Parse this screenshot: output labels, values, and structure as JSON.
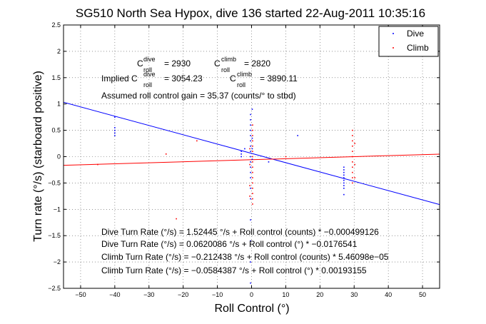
{
  "chart_data": {
    "type": "scatter",
    "title": "SG510 North Sea Hypox, dive 136 started 22-Aug-2011 10:35:16",
    "xlabel": "Roll Control (°)",
    "ylabel": "Turn rate (°/s) (starboard positive)",
    "xlim": [
      -55,
      55
    ],
    "ylim": [
      -2.5,
      2.5
    ],
    "xticks": [
      -50,
      -40,
      -30,
      -20,
      -10,
      0,
      10,
      20,
      30,
      40,
      50
    ],
    "yticks": [
      -2.5,
      -2,
      -1.5,
      -1,
      -0.5,
      0,
      0.5,
      1,
      1.5,
      2,
      2.5
    ],
    "xtick_labels": [
      "−50",
      "−40",
      "−30",
      "−20",
      "−10",
      "0",
      "10",
      "20",
      "30",
      "40",
      "50"
    ],
    "ytick_labels": [
      "−2.5",
      "−2",
      "−1.5",
      "−1",
      "−0.5",
      "0",
      "0.5",
      "1",
      "1.5",
      "2",
      "2.5"
    ],
    "grid": true,
    "legend": {
      "placement": "top-right",
      "entries": [
        {
          "label": "Dive",
          "color": "#0000ff"
        },
        {
          "label": "Climb",
          "color": "#ff0000"
        }
      ]
    },
    "series": [
      {
        "name": "Dive",
        "color": "#0000ff",
        "points": [
          [
            -40,
            0.55
          ],
          [
            -40,
            0.5
          ],
          [
            -40,
            0.45
          ],
          [
            -40,
            0.4
          ],
          [
            -40,
            0.75
          ],
          [
            -0.3,
            0.8
          ],
          [
            -0.3,
            0.7
          ],
          [
            -0.3,
            0.6
          ],
          [
            -0.3,
            0.5
          ],
          [
            -0.3,
            0.4
          ],
          [
            -0.3,
            0.3
          ],
          [
            -0.3,
            0.2
          ],
          [
            -0.3,
            0.1
          ],
          [
            -0.3,
            0.0
          ],
          [
            -0.3,
            -0.1
          ],
          [
            -0.3,
            -0.2
          ],
          [
            -0.3,
            -0.3
          ],
          [
            -0.3,
            -0.4
          ],
          [
            -0.3,
            -0.6
          ],
          [
            -0.3,
            -0.8
          ],
          [
            -0.3,
            -1.2
          ],
          [
            -0.3,
            -1.6
          ],
          [
            -0.3,
            -2.0
          ],
          [
            -0.3,
            -2.4
          ],
          [
            0.2,
            0.9
          ],
          [
            0.2,
            0.35
          ],
          [
            0.2,
            0.15
          ],
          [
            0.2,
            -0.05
          ],
          [
            -3,
            0.1
          ],
          [
            -3,
            0.05
          ],
          [
            -3,
            0.0
          ],
          [
            -2,
            0.15
          ],
          [
            5,
            -0.1
          ],
          [
            13.5,
            0.4
          ],
          [
            27,
            -0.2
          ],
          [
            27,
            -0.25
          ],
          [
            27,
            -0.3
          ],
          [
            27,
            -0.35
          ],
          [
            27,
            -0.4
          ],
          [
            27,
            -0.45
          ],
          [
            27,
            -0.5
          ],
          [
            27,
            -0.55
          ],
          [
            27,
            -0.6
          ],
          [
            27,
            -0.72
          ]
        ]
      },
      {
        "name": "Climb",
        "color": "#ff0000",
        "points": [
          [
            0.3,
            0.6
          ],
          [
            0.3,
            0.5
          ],
          [
            0.3,
            0.4
          ],
          [
            0.3,
            0.3
          ],
          [
            0.3,
            0.2
          ],
          [
            0.3,
            0.1
          ],
          [
            0.3,
            0.0
          ],
          [
            0.3,
            -0.1
          ],
          [
            0.3,
            -0.2
          ],
          [
            0.3,
            -0.3
          ],
          [
            0.3,
            -0.4
          ],
          [
            0.3,
            -0.5
          ],
          [
            0.3,
            -0.6
          ],
          [
            0.3,
            -0.7
          ],
          [
            0.3,
            -0.8
          ],
          [
            0.3,
            -0.9
          ],
          [
            -0.5,
            0.15
          ],
          [
            -0.5,
            -0.15
          ],
          [
            -0.5,
            -0.55
          ],
          [
            -0.5,
            -0.75
          ],
          [
            29.5,
            0.5
          ],
          [
            29.5,
            0.4
          ],
          [
            29.5,
            0.3
          ],
          [
            29.5,
            0.2
          ],
          [
            29.5,
            0.1
          ],
          [
            29.5,
            0.0
          ],
          [
            29.5,
            -0.1
          ],
          [
            29.5,
            -0.2
          ],
          [
            29.5,
            -0.3
          ],
          [
            29.5,
            -0.4
          ],
          [
            29.5,
            -0.5
          ],
          [
            30.2,
            0.25
          ],
          [
            30.2,
            -0.15
          ],
          [
            30.2,
            -0.4
          ],
          [
            -22,
            -1.18
          ],
          [
            -16,
            0.3
          ],
          [
            10,
            0.0
          ],
          [
            -25,
            0.05
          ],
          [
            -45,
            -0.15
          ]
        ]
      }
    ],
    "fit_lines": [
      {
        "name": "Dive",
        "color": "#0000ff",
        "intercept": 0.0620086,
        "slope": -0.0176541
      },
      {
        "name": "Climb",
        "color": "#ff0000",
        "intercept": -0.0584387,
        "slope": 0.00193155
      }
    ],
    "annotations": {
      "c_dive_base": "C",
      "c_dive_sup": "dive",
      "c_dive_sub": "roll",
      "c_dive_value": "= 2930",
      "c_climb_base": "C",
      "c_climb_sup": "climb",
      "c_climb_sub": "roll",
      "c_climb_value": "= 2820",
      "implied_prefix": "Implied C",
      "implied_dive_sup": "dive",
      "implied_dive_sub": "roll",
      "implied_dive_value": "= 3054.23",
      "implied_climb_base": "C",
      "implied_climb_sup": "climb",
      "implied_climb_sub": "roll",
      "implied_climb_value": "= 3890.11",
      "gain": "Assumed roll control gain = 35.37 (counts/° to stbd)",
      "fit1": "Dive Turn Rate (°/s) = 1.52445 °/s + Roll control (counts) * −0.000499126",
      "fit2": "Dive Turn Rate (°/s) = 0.0620086 °/s + Roll control (°) * −0.0176541",
      "fit3": "Climb Turn Rate (°/s) = −0.212438 °/s + Roll control (counts) * 5.46098e−05",
      "fit4": "Climb Turn Rate (°/s) = −0.0584387 °/s + Roll control (°) * 0.00193155"
    }
  }
}
